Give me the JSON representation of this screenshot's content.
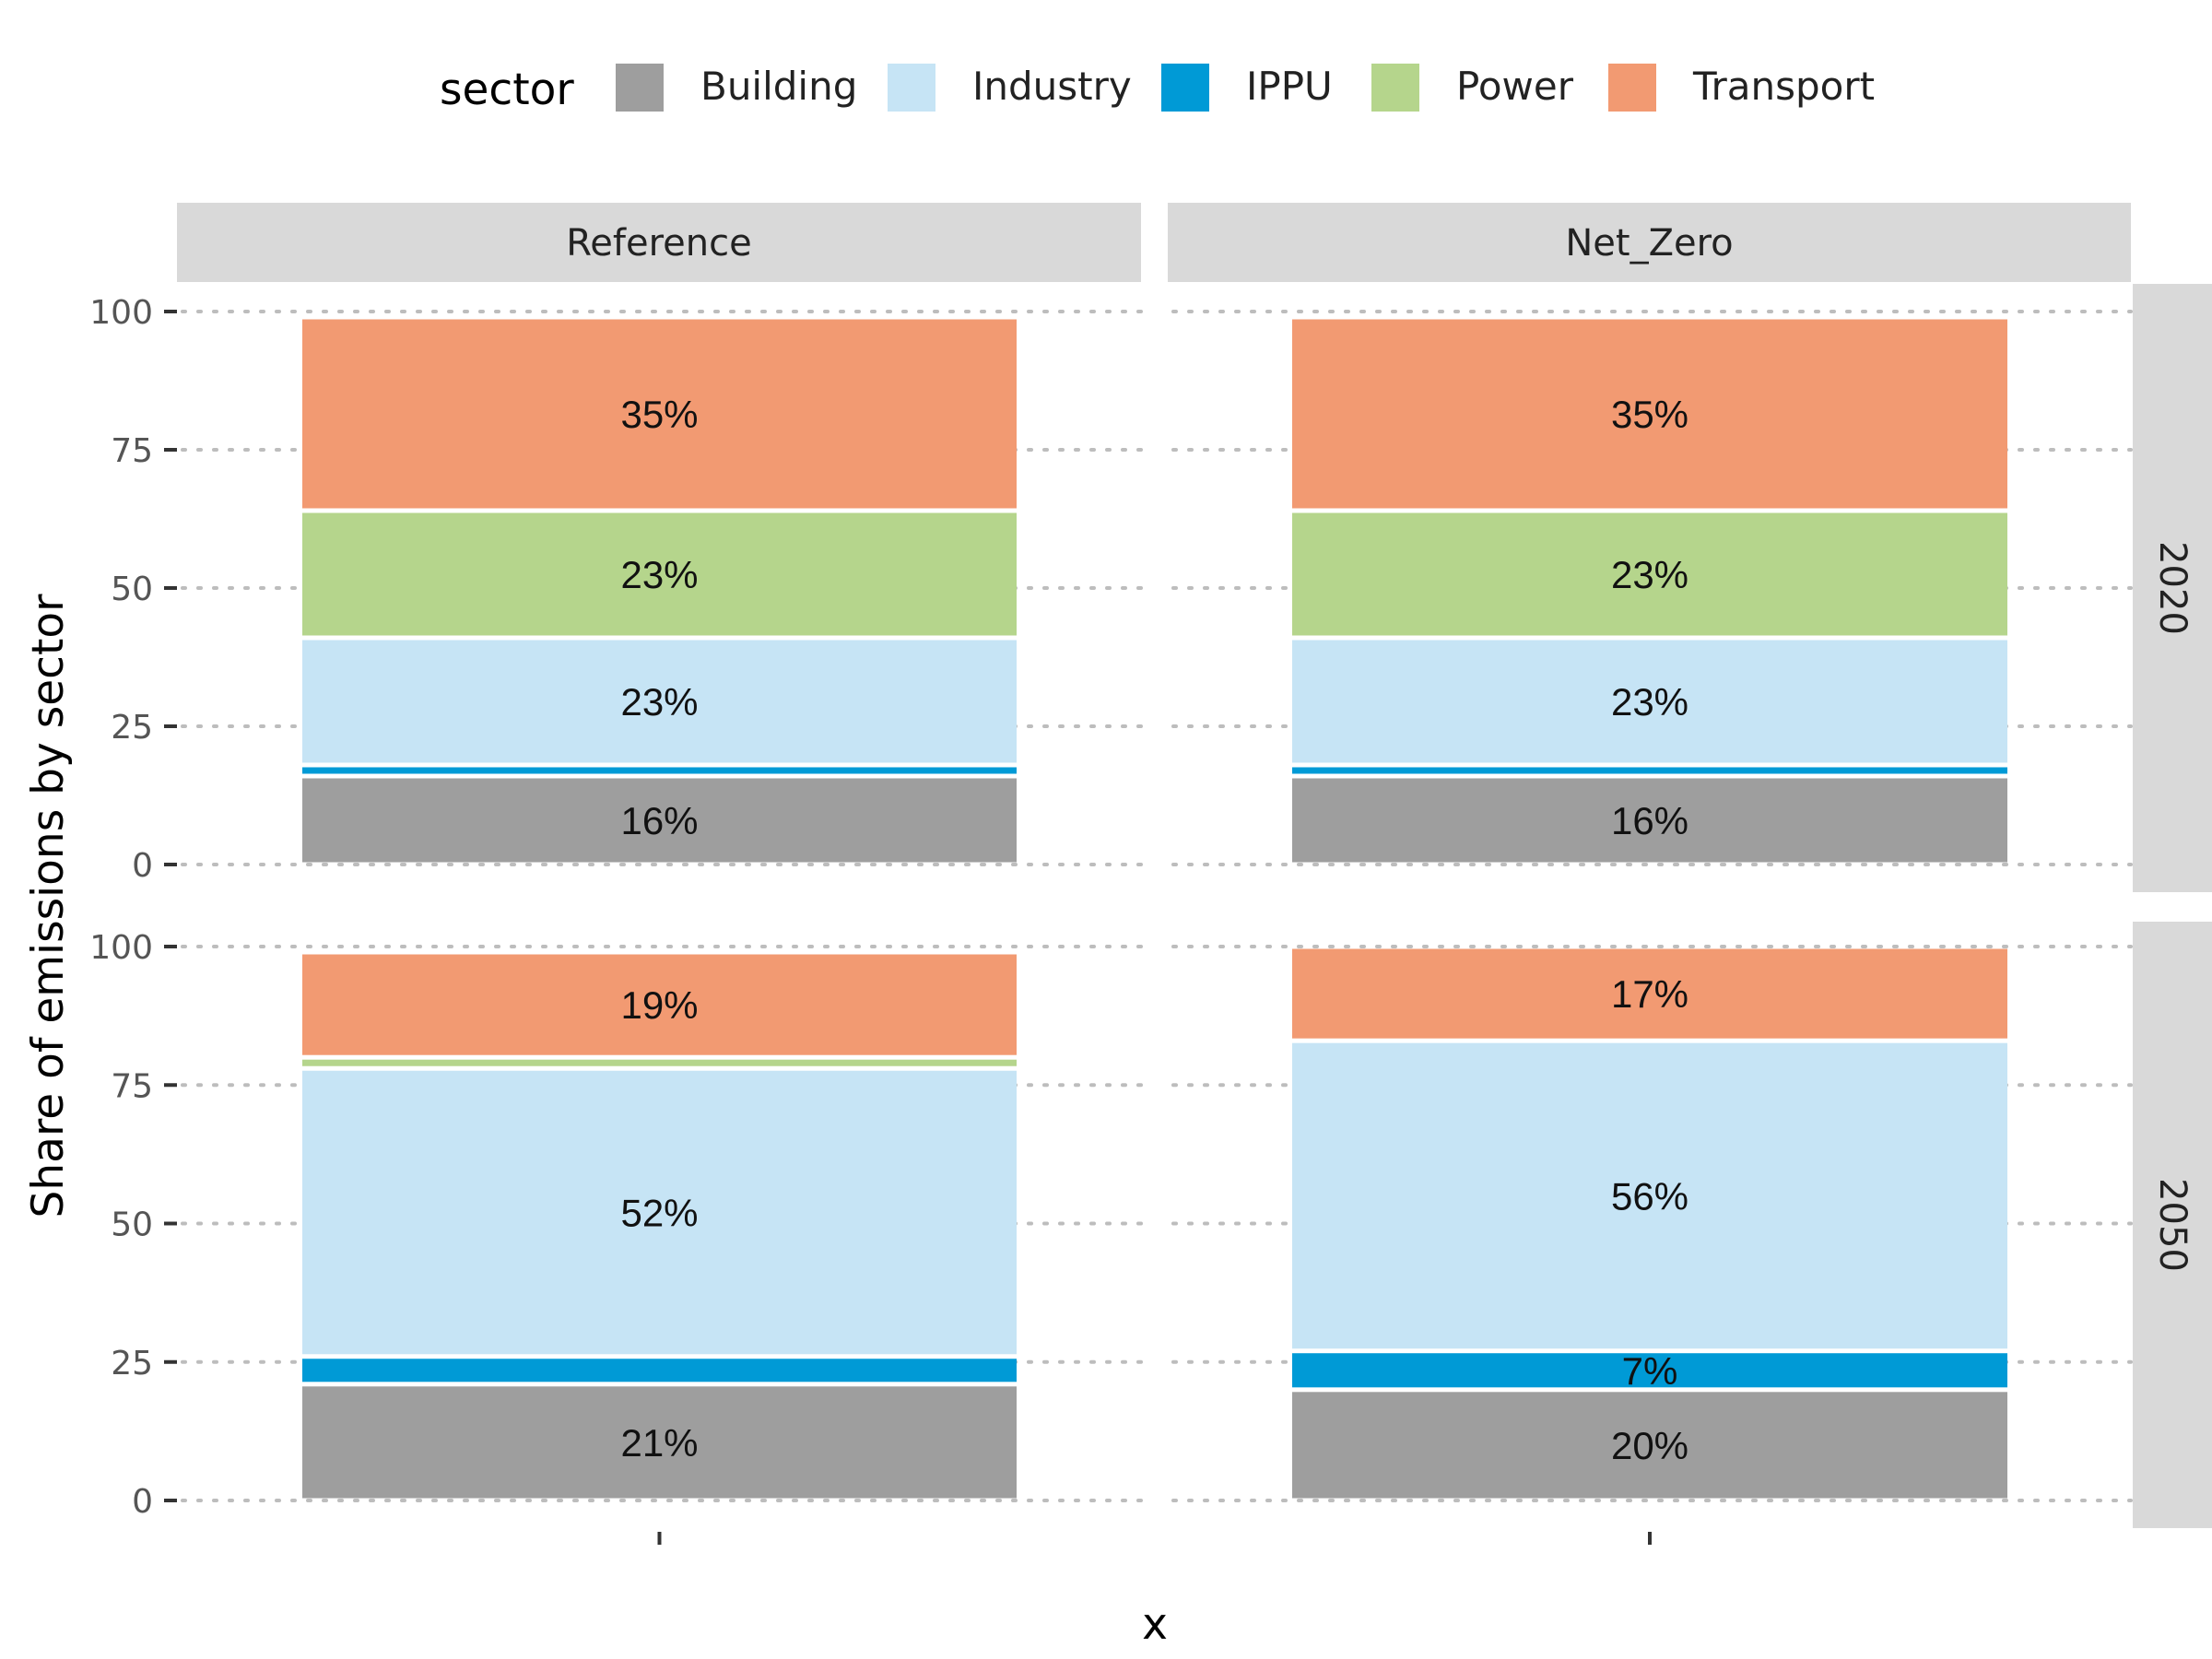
{
  "chart_data": {
    "type": "bar",
    "stacked": true,
    "legend": {
      "title": "sector",
      "position": "top",
      "items": [
        {
          "name": "Building",
          "color": "#9e9e9e"
        },
        {
          "name": "Industry",
          "color": "#c6e4f5"
        },
        {
          "name": "IPPU",
          "color": "#009ad6"
        },
        {
          "name": "Power",
          "color": "#b5d58c"
        },
        {
          "name": "Transport",
          "color": "#f29a72"
        }
      ]
    },
    "xlabel": "x",
    "ylabel": "Share of emissions by sector",
    "ylim": [
      0,
      100
    ],
    "yticks": [
      "0",
      "25",
      "50",
      "75",
      "100"
    ],
    "grid": "dotted horizontal",
    "columns": [
      "Reference",
      "Net_Zero"
    ],
    "rows": [
      "2020",
      "2050"
    ],
    "panels": [
      {
        "row": "2020",
        "column": "Reference",
        "stack": [
          {
            "sector": "Building",
            "value": 16,
            "label": "16%"
          },
          {
            "sector": "IPPU",
            "value": 2,
            "label": ""
          },
          {
            "sector": "Industry",
            "value": 23,
            "label": "23%"
          },
          {
            "sector": "Power",
            "value": 23,
            "label": "23%"
          },
          {
            "sector": "Transport",
            "value": 35,
            "label": "35%"
          }
        ]
      },
      {
        "row": "2020",
        "column": "Net_Zero",
        "stack": [
          {
            "sector": "Building",
            "value": 16,
            "label": "16%"
          },
          {
            "sector": "IPPU",
            "value": 2,
            "label": ""
          },
          {
            "sector": "Industry",
            "value": 23,
            "label": "23%"
          },
          {
            "sector": "Power",
            "value": 23,
            "label": "23%"
          },
          {
            "sector": "Transport",
            "value": 35,
            "label": "35%"
          }
        ]
      },
      {
        "row": "2050",
        "column": "Reference",
        "stack": [
          {
            "sector": "Building",
            "value": 21,
            "label": "21%"
          },
          {
            "sector": "IPPU",
            "value": 5,
            "label": ""
          },
          {
            "sector": "Industry",
            "value": 52,
            "label": "52%"
          },
          {
            "sector": "Power",
            "value": 2,
            "label": ""
          },
          {
            "sector": "Transport",
            "value": 19,
            "label": "19%"
          }
        ]
      },
      {
        "row": "2050",
        "column": "Net_Zero",
        "stack": [
          {
            "sector": "Building",
            "value": 20,
            "label": "20%"
          },
          {
            "sector": "IPPU",
            "value": 7,
            "label": "7%"
          },
          {
            "sector": "Industry",
            "value": 56,
            "label": "56%"
          },
          {
            "sector": "Power",
            "value": 0,
            "label": ""
          },
          {
            "sector": "Transport",
            "value": 17,
            "label": "17%"
          }
        ]
      }
    ]
  }
}
